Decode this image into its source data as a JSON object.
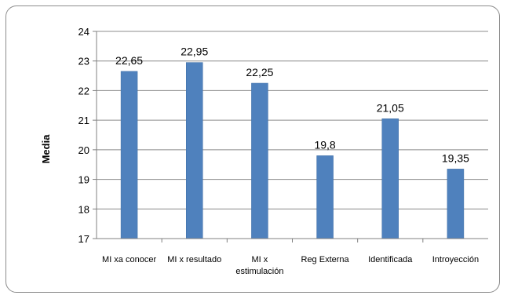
{
  "chart_data": {
    "type": "bar",
    "title": "",
    "xlabel": "",
    "ylabel": "Media",
    "ylim": [
      17,
      24
    ],
    "yticks": [
      17,
      18,
      19,
      20,
      21,
      22,
      23,
      24
    ],
    "grid": true,
    "legend": "none",
    "bar_color": "#4f81bd",
    "categories": [
      [
        "MI xa conocer"
      ],
      [
        "MI x resultado"
      ],
      [
        "MI x",
        "estimulación"
      ],
      [
        "Reg Externa"
      ],
      [
        "Identificada"
      ],
      [
        "Introyección"
      ]
    ],
    "values": [
      22.65,
      22.95,
      22.25,
      19.8,
      21.05,
      19.35
    ],
    "data_labels": [
      "22,65",
      "22,95",
      "22,25",
      "19,8",
      "21,05",
      "19,35"
    ]
  }
}
